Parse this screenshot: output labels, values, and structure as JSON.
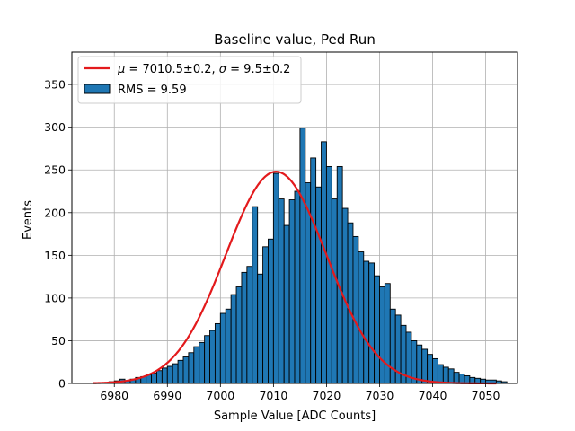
{
  "chart_data": {
    "type": "bar",
    "title": "Baseline value, Ped Run",
    "xlabel": "Sample Value [ADC Counts]",
    "ylabel": "Events",
    "xlim": [
      6972,
      7056
    ],
    "ylim": [
      0,
      388
    ],
    "xticks": [
      6980,
      6990,
      7000,
      7010,
      7020,
      7030,
      7040,
      7050
    ],
    "yticks": [
      0,
      50,
      100,
      150,
      200,
      250,
      300,
      350
    ],
    "grid": true,
    "legend_position": "top-left",
    "bin_start": 6976,
    "bin_width": 1,
    "series": [
      {
        "name": "RMS = 9.59",
        "kind": "histogram",
        "color": "#1f77b4",
        "edgecolor": "#000000",
        "values": [
          1,
          1,
          1,
          2,
          3,
          5,
          3,
          5,
          7,
          8,
          10,
          12,
          15,
          18,
          20,
          23,
          27,
          31,
          36,
          43,
          48,
          56,
          62,
          70,
          82,
          87,
          104,
          113,
          130,
          137,
          207,
          128,
          160,
          169,
          246,
          216,
          185,
          215,
          225,
          299,
          235,
          264,
          230,
          283,
          254,
          216,
          254,
          205,
          188,
          172,
          154,
          143,
          141,
          126,
          113,
          117,
          87,
          80,
          68,
          60,
          50,
          45,
          40,
          34,
          29,
          22,
          19,
          17,
          13,
          11,
          9,
          7,
          6,
          5,
          4,
          4,
          3,
          2
        ]
      },
      {
        "name": "$\\mu = 7010.5\\pm0.2$, $\\sigma = 9.5\\pm0.2$",
        "kind": "line",
        "color": "#e31a1c",
        "function": "gaussian",
        "amplitude": 248,
        "mean": 7010.5,
        "sigma": 9.5,
        "x_range": [
          6976,
          7052
        ]
      }
    ]
  },
  "legend": {
    "fit_mu_symbol": "μ",
    "fit_mid": " = 7010.5±0.2, ",
    "fit_sigma_symbol": "σ",
    "fit_end": " = 9.5±0.2",
    "hist_label": "RMS = 9.59"
  }
}
